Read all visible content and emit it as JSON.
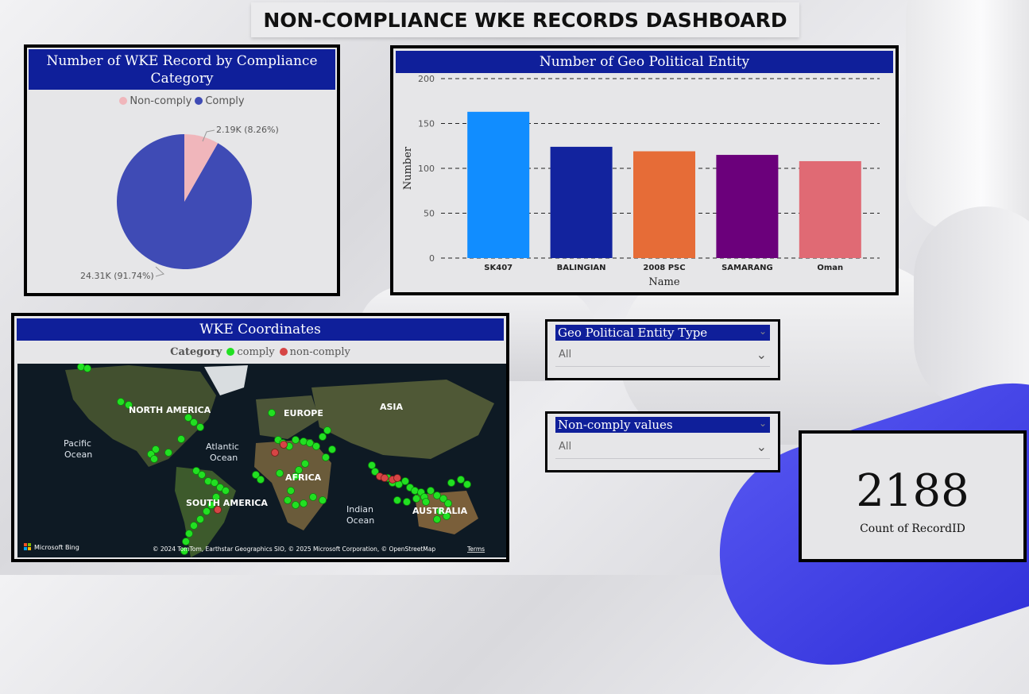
{
  "dashboard": {
    "title": "NON-COMPLIANCE WKE RECORDS DASHBOARD"
  },
  "pie": {
    "title": "Number of WKE Record by Compliance Category",
    "legend": [
      {
        "label": "Non-comply",
        "color": "#f0b6bb"
      },
      {
        "label": "Comply",
        "color": "#3f4bb5"
      }
    ],
    "labels": {
      "noncomply": "2.19K (8.26%)",
      "comply": "24.31K (91.74%)"
    }
  },
  "chart_data": [
    {
      "type": "pie",
      "title": "Number of WKE Record by Compliance Category",
      "categories": [
        "Non-comply",
        "Comply"
      ],
      "values": [
        2190,
        24310
      ],
      "percentages": [
        8.26,
        91.74
      ],
      "data_labels": [
        "2.19K (8.26%)",
        "24.31K (91.74%)"
      ],
      "colors": [
        "#f0b6bb",
        "#3f4bb5"
      ],
      "legend": "top"
    },
    {
      "type": "bar",
      "title": "Number of Geo Political Entity",
      "categories": [
        "SK407",
        "BALINGIAN",
        "2008 PSC",
        "SAMARANG",
        "Oman"
      ],
      "values": [
        163,
        124,
        119,
        115,
        108
      ],
      "colors": [
        "#118dff",
        "#12239e",
        "#e66c37",
        "#6b007b",
        "#e06a74"
      ],
      "xlabel": "Name",
      "ylabel": "Number",
      "ylim": [
        0,
        200
      ],
      "yticks": [
        0,
        50,
        100,
        150,
        200
      ],
      "grid": true
    }
  ],
  "map": {
    "title": "WKE Coordinates",
    "legend_title": "Category",
    "legend": [
      {
        "label": "comply",
        "color": "#22e022"
      },
      {
        "label": "non-comply",
        "color": "#d64545"
      }
    ],
    "labels": {
      "north_america": "NORTH AMERICA",
      "europe": "EUROPE",
      "asia": "ASIA",
      "africa": "AFRICA",
      "south_america": "SOUTH AMERICA",
      "australia": "AUSTRALIA",
      "pacific_1": "Pacific",
      "pacific_2": "Ocean",
      "atlantic_1": "Atlantic",
      "atlantic_2": "Ocean",
      "indian_1": "Indian",
      "indian_2": "Ocean"
    },
    "provider": "Microsoft Bing",
    "copyright": "© 2024 TomTom, Earthstar Geographics SIO, © 2025 Microsoft Corporation, © OpenStreetMap",
    "terms": "Terms"
  },
  "slicers": {
    "geo_type": {
      "label": "Geo Political Entity Type",
      "value": "All"
    },
    "noncomply": {
      "label": "Non-comply values",
      "value": "All"
    }
  },
  "kpi": {
    "value": "2188",
    "label": "Count of RecordID"
  }
}
